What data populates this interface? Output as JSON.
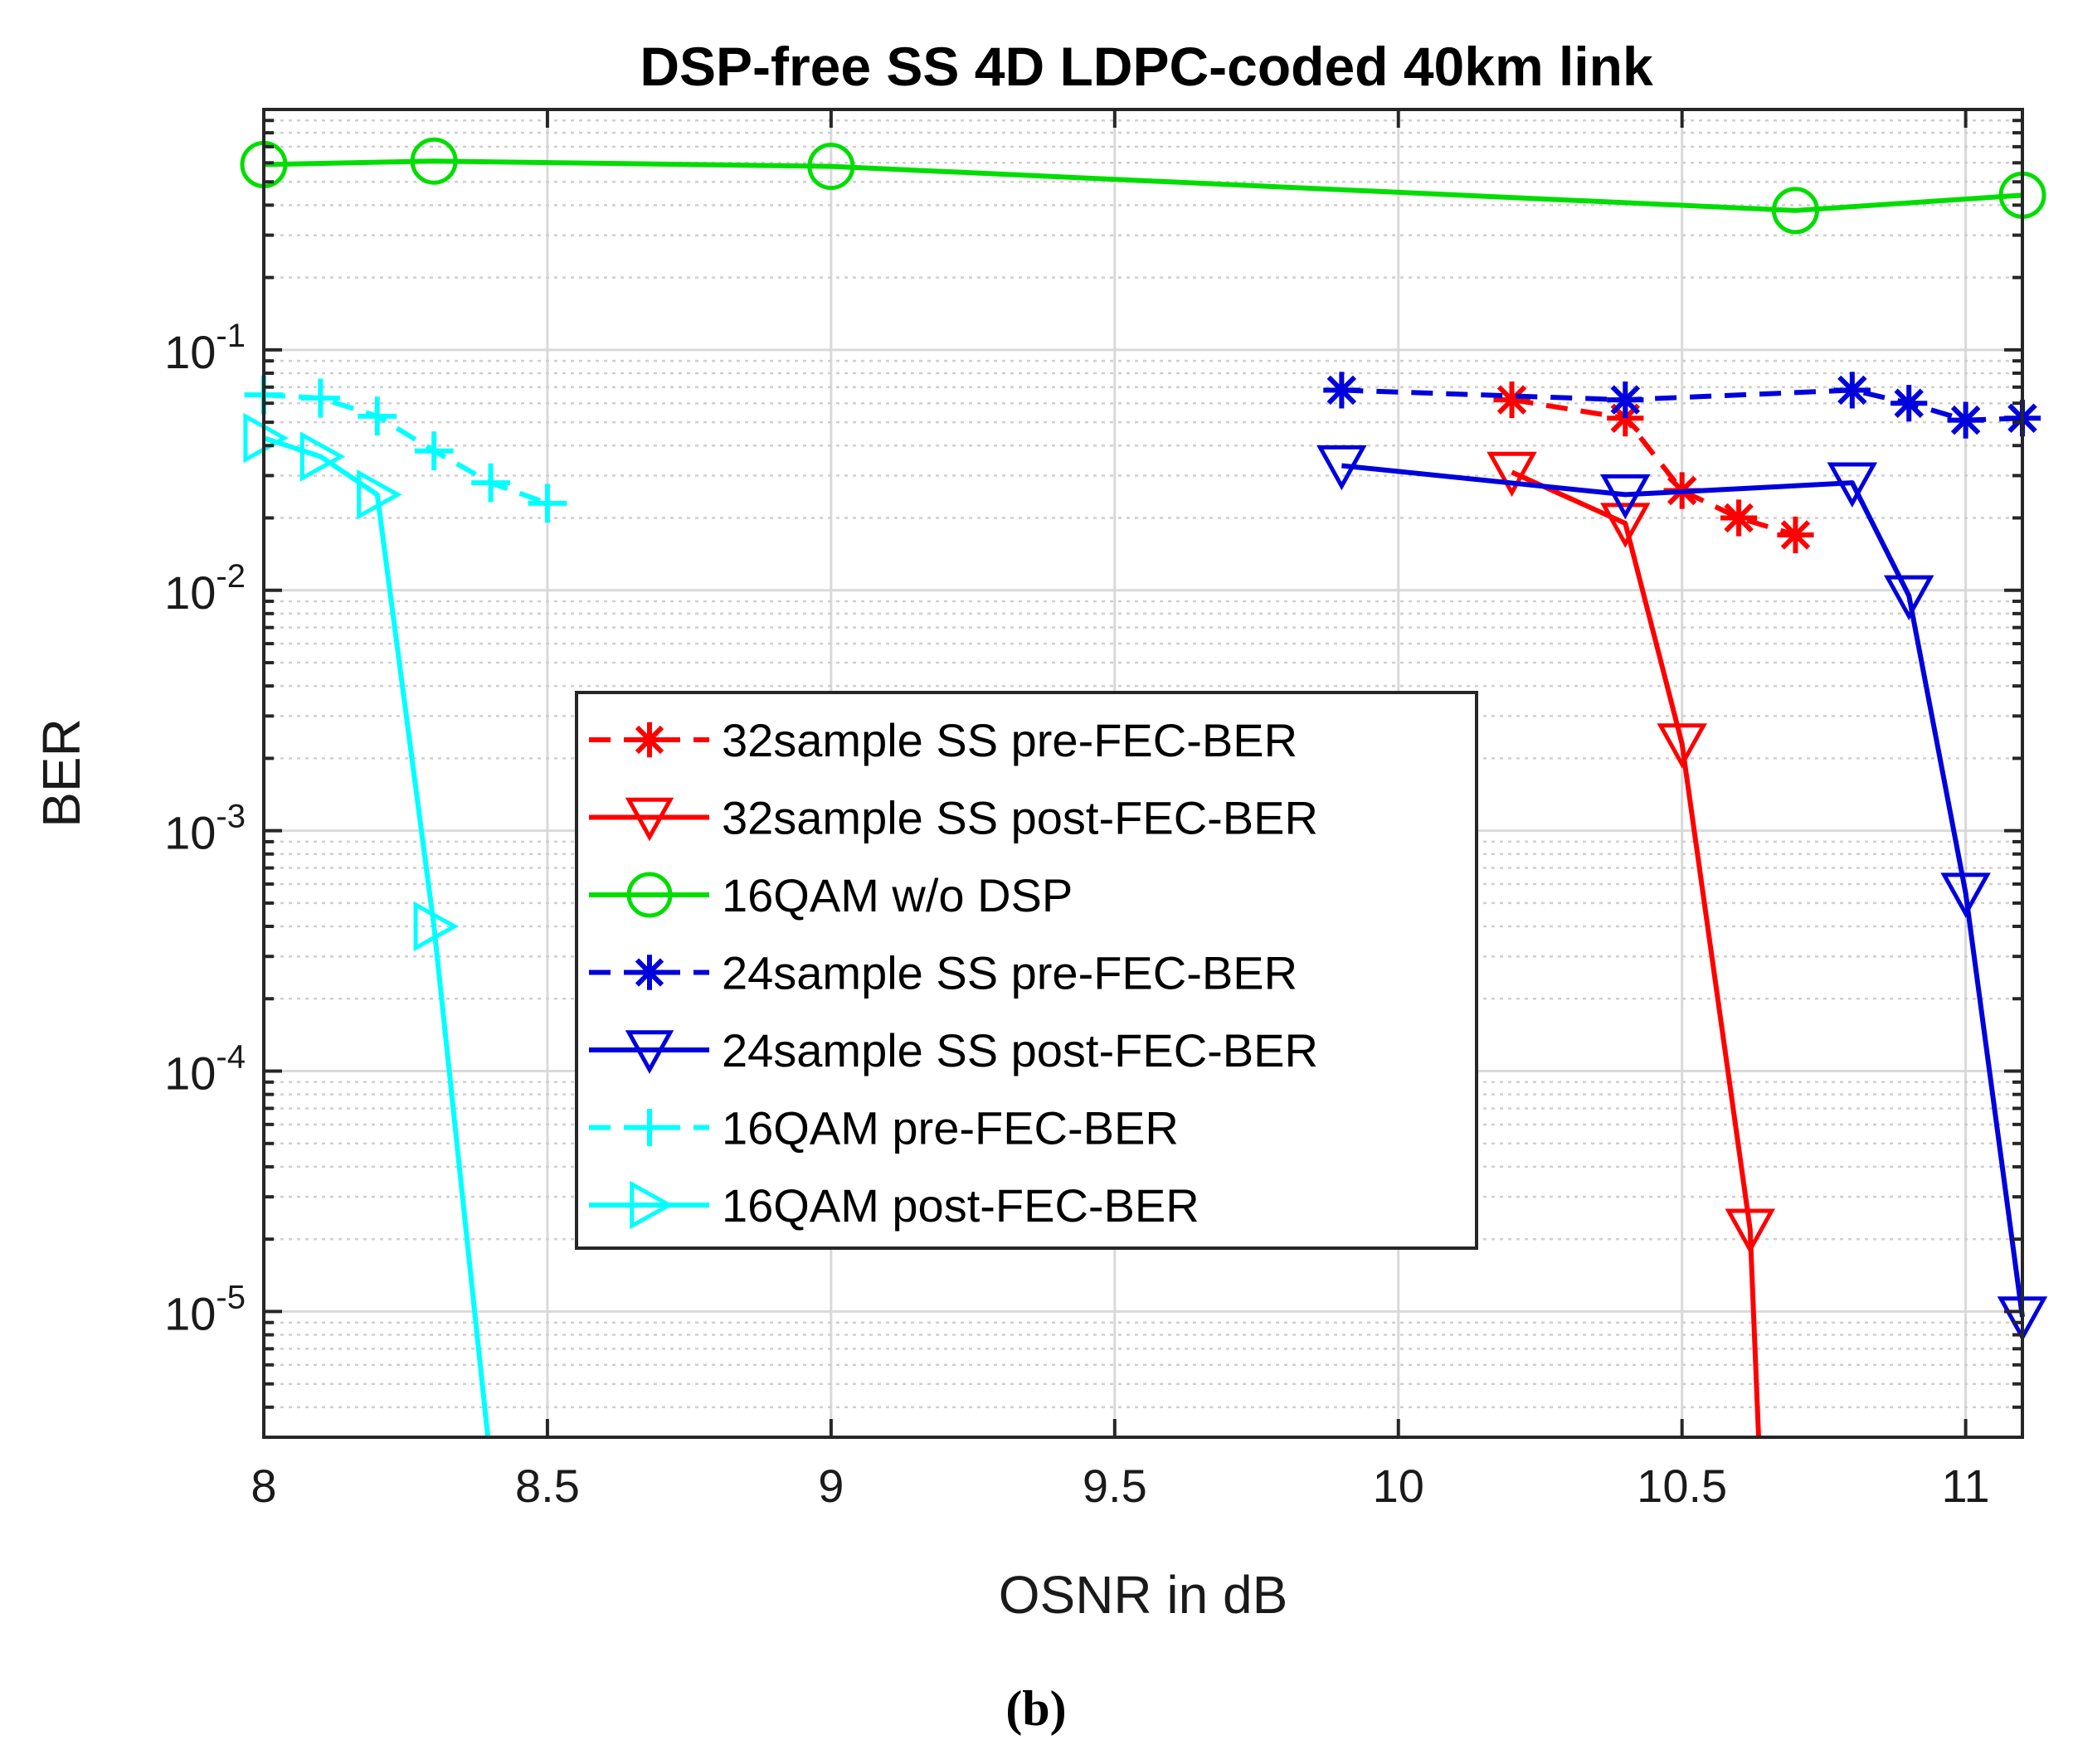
{
  "chart_data": {
    "type": "line",
    "title": "DSP-free SS 4D LDPC-coded 40km link",
    "xlabel": "OSNR in dB",
    "ylabel": "BER",
    "caption": "(b)",
    "xlim": [
      8,
      11.1
    ],
    "ylim": [
      3e-06,
      1
    ],
    "yscale": "log",
    "grid": true,
    "minor_grid": true,
    "x_ticks": [
      8,
      8.5,
      9,
      9.5,
      10,
      10.5,
      11
    ],
    "x_tick_labels": [
      "8",
      "8.5",
      "9",
      "9.5",
      "10",
      "10.5",
      "11"
    ],
    "y_ticks": [
      {
        "value": 1e-05,
        "base": "10",
        "exp": "-5"
      },
      {
        "value": 0.0001,
        "base": "10",
        "exp": "-4"
      },
      {
        "value": 0.001,
        "base": "10",
        "exp": "-3"
      },
      {
        "value": 0.01,
        "base": "10",
        "exp": "-2"
      },
      {
        "value": 0.1,
        "base": "10",
        "exp": "-1"
      }
    ],
    "legend_position": "center",
    "series": [
      {
        "name": "32sample SS pre-FEC-BER",
        "color": "#ff0000",
        "dash": "dashed",
        "marker": "asterisk",
        "x": [
          10.2,
          10.4,
          10.5,
          10.6,
          10.7
        ],
        "y": [
          0.062,
          0.052,
          0.026,
          0.02,
          0.017
        ]
      },
      {
        "name": "32sample SS post-FEC-BER",
        "color": "#ff0000",
        "dash": "solid",
        "marker": "triangle-down",
        "x": [
          10.2,
          10.4,
          10.5,
          10.62,
          10.635
        ],
        "y": [
          0.031,
          0.019,
          0.0023,
          2.2e-05,
          3e-06
        ],
        "marker_count": 4
      },
      {
        "name": "16QAM w/o DSP",
        "color": "#00dd00",
        "dash": "solid",
        "marker": "circle",
        "x": [
          8,
          8.3,
          9,
          10.7,
          11.1
        ],
        "y": [
          0.59,
          0.61,
          0.58,
          0.38,
          0.44
        ]
      },
      {
        "name": "24sample SS pre-FEC-BER",
        "color": "#0000dd",
        "dash": "dashed",
        "marker": "asterisk",
        "x": [
          9.9,
          10.4,
          10.8,
          10.9,
          11.0,
          11.1
        ],
        "y": [
          0.068,
          0.062,
          0.068,
          0.06,
          0.051,
          0.052
        ]
      },
      {
        "name": "24sample SS post-FEC-BER",
        "color": "#0000dd",
        "dash": "solid",
        "marker": "triangle-down",
        "x": [
          9.9,
          10.4,
          10.8,
          10.9,
          11.0,
          11.1
        ],
        "y": [
          0.033,
          0.025,
          0.028,
          0.0095,
          0.00055,
          9.5e-06
        ]
      },
      {
        "name": "16QAM pre-FEC-BER",
        "color": "#00ffff",
        "dash": "dashed",
        "marker": "plus",
        "x": [
          8,
          8.1,
          8.2,
          8.3,
          8.4,
          8.5
        ],
        "y": [
          0.065,
          0.063,
          0.053,
          0.038,
          0.028,
          0.023
        ]
      },
      {
        "name": "16QAM post-FEC-BER",
        "color": "#00ffff",
        "dash": "solid",
        "marker": "triangle-right",
        "x": [
          8,
          8.1,
          8.2,
          8.3,
          8.395
        ],
        "y": [
          0.043,
          0.036,
          0.025,
          0.0004,
          3e-06
        ],
        "marker_count": 4
      }
    ]
  }
}
